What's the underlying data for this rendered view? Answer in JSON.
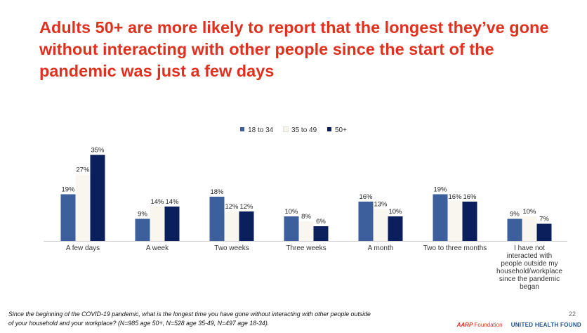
{
  "title": "Adults 50+ are more likely to report that the longest they’ve gone without interacting with other people since the start of the pandemic was just a few days",
  "chart_data": {
    "type": "bar",
    "categories": [
      "A few days",
      "A week",
      "Two weeks",
      "Three weeks",
      "A month",
      "Two to three months",
      "I have not interacted with people outside my household/workplace since the pandemic began"
    ],
    "series": [
      {
        "name": "18 to 34",
        "color": "#3d5f9c",
        "values": [
          19,
          9,
          18,
          10,
          16,
          19,
          9
        ]
      },
      {
        "name": "35 to 49",
        "color": "#f8f6ee",
        "values": [
          27,
          14,
          12,
          8,
          13,
          16,
          10
        ]
      },
      {
        "name": "50+",
        "color": "#0b1f5c",
        "values": [
          35,
          14,
          12,
          6,
          10,
          16,
          7
        ]
      }
    ],
    "value_suffix": "%",
    "ylim": [
      0,
      40
    ],
    "grid": false,
    "legend_position": "top-center"
  },
  "footnote": {
    "line1": "Since the beginning of the COVID-19 pandemic, what is the longest time you have gone without interacting with other people outside",
    "line2": "of your household and your workplace? (N=985 age 50+, N=528 age 35-49,  N=497 age 18-34)."
  },
  "page_number": "22",
  "logos": {
    "aarp": "AARP",
    "aarp_foundation": "Foundation",
    "united_health": "UNITED HEALTH FOUND"
  }
}
